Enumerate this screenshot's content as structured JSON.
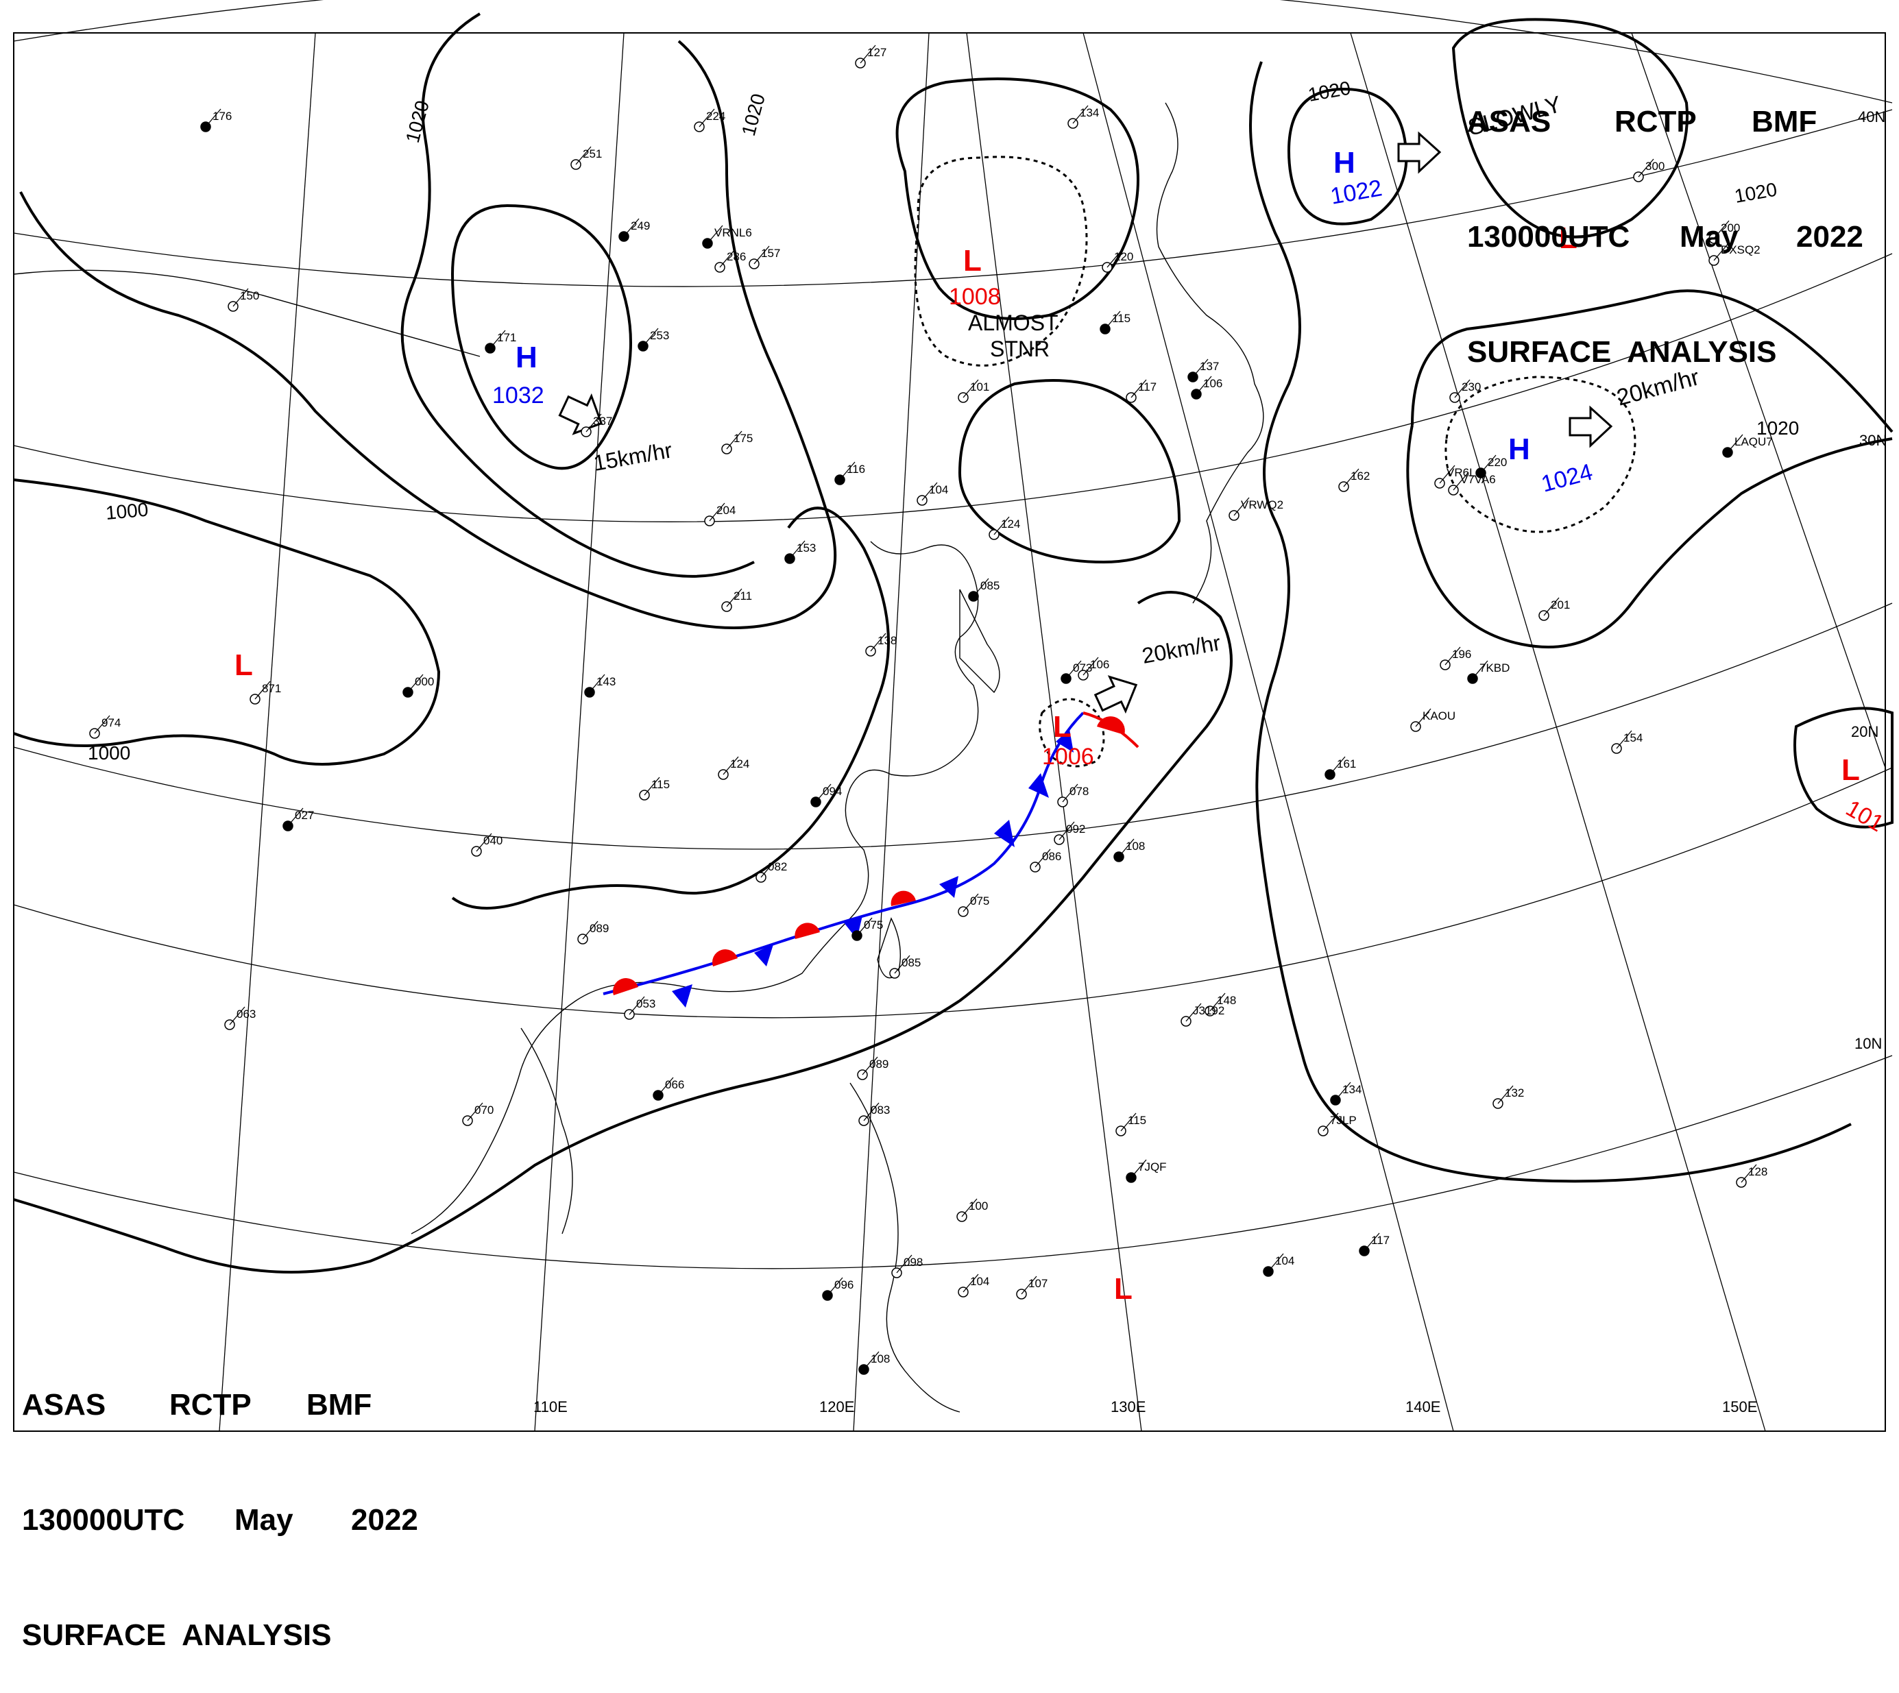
{
  "header_top": {
    "line1": [
      "ASAS",
      "RCTP",
      "BMF"
    ],
    "line2": [
      "130000UTC",
      "May",
      "2022"
    ],
    "line3": "SURFACE  ANALYSIS"
  },
  "header_bottom": {
    "line1": [
      "ASAS",
      "RCTP",
      "BMF"
    ],
    "line2": [
      "130000UTC",
      "May",
      "2022"
    ],
    "line3": "SURFACE  ANALYSIS"
  },
  "longitude_labels": [
    "110E",
    "120E",
    "130E",
    "140E",
    "150E"
  ],
  "latitude_labels": [
    "40N",
    "30N",
    "20N",
    "10N"
  ],
  "colors": {
    "high": "#0000ee",
    "low": "#ee0000",
    "cold_front": "#0000ee",
    "warm_front": "#ee0000",
    "isobar": "#000000",
    "grid": "#000000"
  },
  "pressure_systems": [
    {
      "type": "H",
      "value": "1032",
      "motion": "15km/hr"
    },
    {
      "type": "H",
      "value": "1022",
      "motion": "SLOWLY"
    },
    {
      "type": "H",
      "value": "1024",
      "motion": "20km/hr"
    },
    {
      "type": "L",
      "value": "1008",
      "motion": "ALMOST STNR"
    },
    {
      "type": "L",
      "value": "1006",
      "motion": "20km/hr"
    },
    {
      "type": "L",
      "value": ""
    },
    {
      "type": "L",
      "value": ""
    },
    {
      "type": "L",
      "value": ""
    },
    {
      "type": "L",
      "value": "101"
    }
  ],
  "isobar_labels": [
    "1020",
    "1020",
    "1020",
    "1020",
    "1020",
    "1000",
    "1000"
  ],
  "system_text": {
    "h1_value": "1032",
    "h1_motion": "15km/hr",
    "h2_value": "1022",
    "h2_motion": "SLOWLY",
    "h3_value": "1024",
    "h3_motion": "20km/hr",
    "l1_value": "1008",
    "l1_motion_a": "ALMOST",
    "l1_motion_b": "STNR",
    "l2_value": "1006",
    "l2_motion": "20km/hr",
    "l_east_value": "101"
  },
  "station_labels": [
    "176",
    "127",
    "251",
    "249",
    "157",
    "224",
    "253",
    "134",
    "120",
    "115",
    "300",
    "200",
    "137",
    "117",
    "101",
    "116",
    "104",
    "124",
    "085",
    "175",
    "204",
    "153",
    "211",
    "138",
    "143",
    "124",
    "115",
    "094",
    "082",
    "089",
    "075",
    "085",
    "053",
    "066",
    "070",
    "063",
    "027",
    "871",
    "974",
    "000",
    "040",
    "092",
    "106",
    "162",
    "230",
    "220",
    "201",
    "196",
    "161",
    "154",
    "148",
    "134",
    "132",
    "128",
    "117",
    "115",
    "107",
    "104",
    "100",
    "098",
    "096",
    "089",
    "083",
    "108",
    "086",
    "078",
    "073",
    "075",
    "104",
    "108",
    "106",
    "150",
    "171",
    "337",
    "286",
    "VRNL6",
    "V7VA6",
    "DXSQ2",
    "LAQU7",
    "VRWQ2",
    "KAOU",
    "7KBD",
    "J3192",
    "7JLP",
    "7JQF",
    "VR6L1"
  ]
}
